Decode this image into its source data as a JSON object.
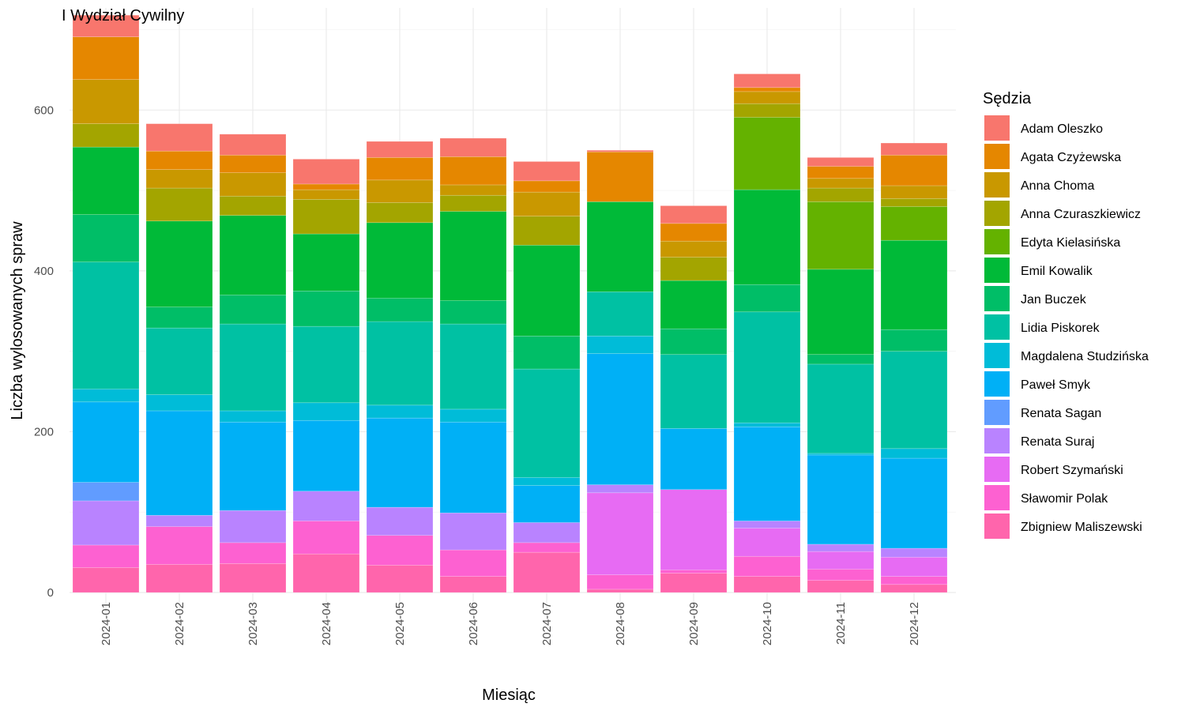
{
  "chart_data": {
    "type": "bar",
    "stacked": true,
    "title": "I Wydział Cywilny",
    "xlabel": "Miesiąc",
    "ylabel": "Liczba wylosowanych spraw",
    "ylim": [
      0,
      750
    ],
    "y_ticks": [
      0,
      200,
      400,
      600
    ],
    "grid": true,
    "legend_title": "Sędzia",
    "legend_position": "right",
    "categories": [
      "2024-01",
      "2024-02",
      "2024-03",
      "2024-04",
      "2024-05",
      "2024-06",
      "2024-07",
      "2024-08",
      "2024-09",
      "2024-10",
      "2024-11",
      "2024-12"
    ],
    "series": [
      {
        "name": "Zbigniew Maliszewski",
        "color": "#FF65AC",
        "values": [
          31,
          35,
          36,
          48,
          34,
          20,
          50,
          4,
          24,
          20,
          15,
          10
        ]
      },
      {
        "name": "Sławomir Polak",
        "color": "#FD61D1",
        "values": [
          28,
          47,
          26,
          41,
          37,
          33,
          12,
          18,
          4,
          25,
          14,
          10
        ]
      },
      {
        "name": "Robert Szymański",
        "color": "#E76BF3",
        "values": [
          0,
          0,
          0,
          0,
          0,
          0,
          0,
          102,
          100,
          35,
          22,
          24
        ]
      },
      {
        "name": "Renata Suraj",
        "color": "#B983FF",
        "values": [
          55,
          14,
          40,
          37,
          35,
          46,
          25,
          10,
          0,
          9,
          9,
          11
        ]
      },
      {
        "name": "Renata Sagan",
        "color": "#619CFF",
        "values": [
          23,
          0,
          0,
          0,
          0,
          0,
          0,
          0,
          0,
          0,
          0,
          0
        ]
      },
      {
        "name": "Paweł Smyk",
        "color": "#00B0F6",
        "values": [
          100,
          130,
          110,
          88,
          111,
          113,
          46,
          163,
          76,
          117,
          111,
          112
        ]
      },
      {
        "name": "Magdalena Studzińska",
        "color": "#00BCD8",
        "values": [
          16,
          20,
          14,
          22,
          16,
          16,
          10,
          22,
          0,
          5,
          2,
          12
        ]
      },
      {
        "name": "Lidia Piskorek",
        "color": "#00C1A3",
        "values": [
          158,
          83,
          108,
          95,
          104,
          106,
          135,
          55,
          92,
          138,
          111,
          121
        ]
      },
      {
        "name": "Jan Buczek",
        "color": "#00BE67",
        "values": [
          59,
          26,
          36,
          44,
          29,
          29,
          41,
          0,
          32,
          34,
          12,
          27
        ]
      },
      {
        "name": "Emil Kowalik",
        "color": "#00BA38",
        "values": [
          84,
          107,
          99,
          71,
          94,
          111,
          113,
          112,
          60,
          118,
          106,
          111
        ]
      },
      {
        "name": "Edyta Kielasińska",
        "color": "#64B200",
        "values": [
          0,
          0,
          0,
          0,
          0,
          0,
          0,
          0,
          0,
          90,
          84,
          42
        ]
      },
      {
        "name": "Anna Czuraszkiewicz",
        "color": "#A3A500",
        "values": [
          29,
          41,
          24,
          43,
          25,
          20,
          36,
          0,
          29,
          17,
          17,
          10
        ]
      },
      {
        "name": "Anna Choma",
        "color": "#C99800",
        "values": [
          55,
          23,
          29,
          12,
          28,
          13,
          30,
          0,
          20,
          15,
          12,
          16
        ]
      },
      {
        "name": "Agata Czyżewska",
        "color": "#E58700",
        "values": [
          53,
          23,
          22,
          7,
          28,
          35,
          14,
          62,
          22,
          5,
          15,
          38
        ]
      },
      {
        "name": "Adam Oleszko",
        "color": "#F8766D",
        "values": [
          27,
          34,
          26,
          31,
          20,
          23,
          24,
          2,
          22,
          17,
          11,
          15
        ]
      }
    ]
  }
}
